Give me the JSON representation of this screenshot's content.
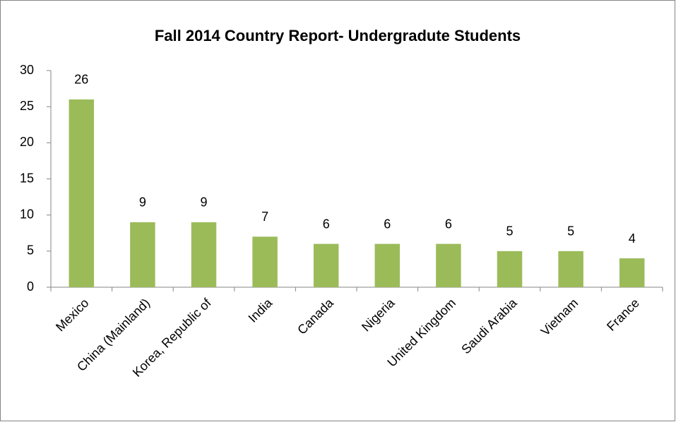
{
  "chart_data": {
    "type": "bar",
    "title": "Fall 2014 Country Report- Undergradute Students",
    "categories": [
      "Mexico",
      "China (Mainland)",
      "Korea, Republic of",
      "India",
      "Canada",
      "Nigeria",
      "United Kingdom",
      "Saudi Arabia",
      "Vietnam",
      "France"
    ],
    "values": [
      26,
      9,
      9,
      7,
      6,
      6,
      6,
      5,
      5,
      4
    ],
    "color": "#9bbb59",
    "ylim": [
      0,
      30
    ],
    "yticks": [
      0,
      5,
      10,
      15,
      20,
      25,
      30
    ],
    "grid": false,
    "data_labels": true
  }
}
